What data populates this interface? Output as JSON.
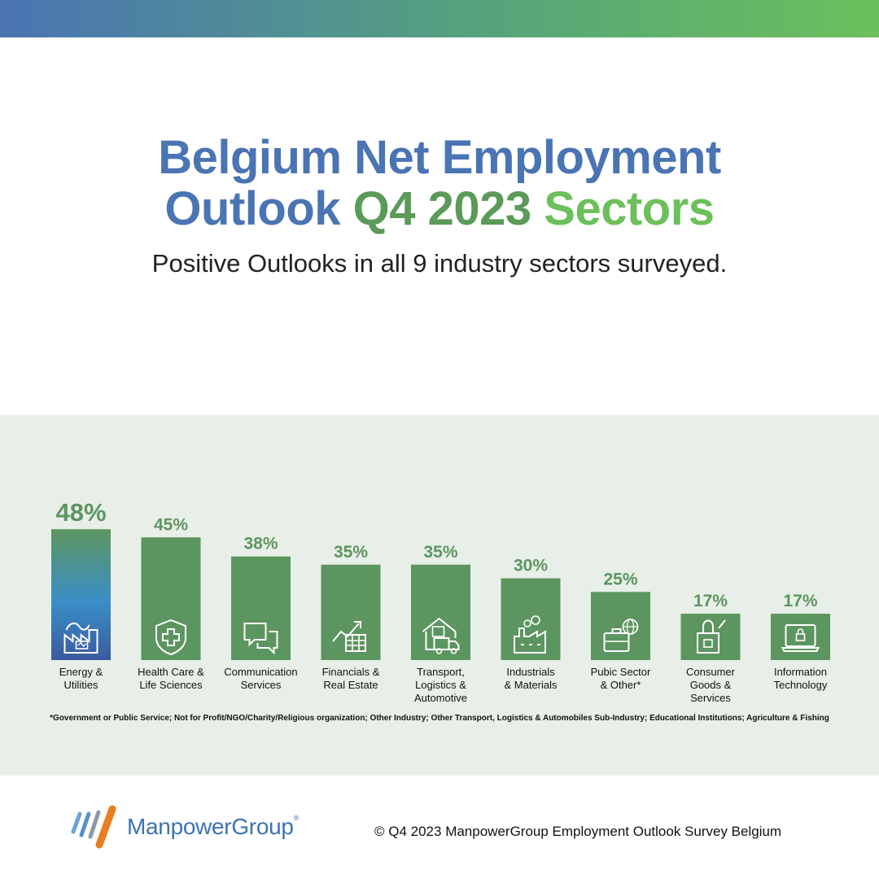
{
  "header": {
    "title_part1": "Belgium Net Employment",
    "title_part2": "Outlook",
    "title_part3": "Q4 2023",
    "title_part4": "Sectors",
    "subtitle": "Positive Outlooks in all 9 industry sectors surveyed."
  },
  "chart_data": {
    "type": "bar",
    "categories": [
      [
        "Energy &",
        "Utilities"
      ],
      [
        "Health Care &",
        "Life Sciences"
      ],
      [
        "Communication",
        "Services"
      ],
      [
        "Financials &",
        "Real Estate"
      ],
      [
        "Transport,",
        "Logistics &",
        "Automotive"
      ],
      [
        "Industrials",
        "& Materials"
      ],
      [
        "Pubic Sector",
        "& Other*"
      ],
      [
        "Consumer",
        "Goods &",
        "Services"
      ],
      [
        "Information",
        "Technology"
      ]
    ],
    "values": [
      48,
      45,
      38,
      35,
      35,
      30,
      25,
      17,
      17
    ],
    "value_labels": [
      "48%",
      "45%",
      "38%",
      "35%",
      "35%",
      "30%",
      "25%",
      "17%",
      "17%"
    ],
    "icons": [
      "factory-energy-icon",
      "health-shield-icon",
      "chat-bubbles-icon",
      "chart-table-icon",
      "warehouse-truck-icon",
      "factory-icon",
      "briefcase-globe-icon",
      "shopping-bag-icon",
      "laptop-lock-icon"
    ],
    "highlight_index": 0,
    "colors": {
      "bar": "#5d9560",
      "label": "#5d9560",
      "highlight_top": "#5d9560",
      "highlight_mid": "#3a8fc8",
      "highlight_bottom": "#3a5a9e"
    }
  },
  "footnote": "*Government or Public Service; Not for Profit/NGO/Charity/Religious organization; Other Industry; Other Transport, Logistics & Automobiles Sub-Industry; Educational Institutions; Agriculture & Fishing",
  "footer": {
    "logo_text": "ManpowerGroup",
    "logo_reg": "®",
    "copyright": "© Q4 2023 ManpowerGroup Employment Outlook Survey Belgium"
  }
}
